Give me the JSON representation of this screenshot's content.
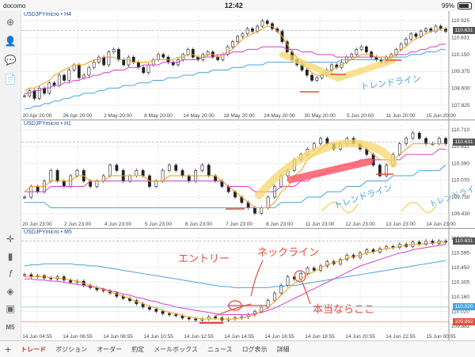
{
  "status": {
    "carrier": "docomo",
    "time": "12:42",
    "battery": "99%"
  },
  "charts": [
    {
      "label": "USDJPYmicro • H4",
      "prices": [
        "110.925",
        "110.631",
        "110.150",
        "109.375",
        "108.600",
        "107.825"
      ],
      "current": "110.631",
      "dates": [
        "20 Apr 20:00",
        "26 Apr 20:00",
        "2 May 20:00",
        "8 May 20:00",
        "14 May 20:00",
        "18 May 20:00",
        "24 May 20:00",
        "30 May 20:00",
        "5 Jun 20:00",
        "11 Jun 20:00",
        "15 Jun 20:00"
      ],
      "ylim": [
        107.55,
        111.2
      ],
      "candles": [
        108.1,
        108.3,
        108.0,
        108.4,
        108.2,
        108.6,
        108.5,
        108.9,
        108.7,
        109.1,
        109.3,
        108.8,
        108.9,
        109.2,
        109.4,
        109.6,
        109.3,
        109.8,
        109.9,
        109.5,
        109.3,
        109.6,
        109.4,
        109.2,
        109.0,
        109.3,
        109.5,
        109.7,
        109.6,
        109.4,
        109.3,
        109.5,
        109.7,
        109.9,
        109.6,
        109.5,
        109.7,
        109.8,
        109.6,
        109.5,
        109.7,
        110.0,
        110.2,
        110.4,
        110.5,
        110.7,
        110.6,
        110.8,
        111.0,
        110.9,
        110.7,
        110.6,
        110.2,
        109.8,
        109.5,
        109.3,
        109.1,
        108.9,
        108.7,
        108.8,
        108.9,
        109.1,
        109.3,
        109.2,
        109.4,
        109.6,
        109.7,
        109.9,
        110.0,
        109.8,
        109.6,
        109.5,
        109.4,
        109.6,
        109.7,
        109.9,
        110.1,
        110.3,
        110.5,
        110.4,
        110.6,
        110.7,
        110.6,
        110.8,
        110.7,
        110.6
      ],
      "ma_fast": [
        108.3,
        108.4,
        108.4,
        108.5,
        108.6,
        108.7,
        108.9,
        109.0,
        109.1,
        109.2,
        109.3,
        109.3,
        109.3,
        109.4,
        109.5,
        109.5,
        109.6,
        109.6,
        109.6,
        109.5,
        109.5,
        109.5,
        109.4,
        109.4,
        109.4,
        109.4,
        109.5,
        109.5,
        109.5,
        109.5,
        109.5,
        109.6,
        109.6,
        109.7,
        109.7,
        109.6,
        109.6,
        109.7,
        109.7,
        109.6,
        109.7,
        109.8,
        109.9,
        110.1,
        110.3,
        110.4,
        110.5,
        110.6,
        110.7,
        110.8,
        110.8,
        110.6,
        110.4,
        110.1,
        109.8,
        109.6,
        109.4,
        109.2,
        109.0,
        108.9,
        108.9,
        109.0,
        109.1,
        109.2,
        109.3,
        109.4,
        109.5,
        109.6,
        109.7,
        109.7,
        109.7,
        109.6,
        109.6,
        109.6,
        109.6,
        109.7,
        109.9,
        110.0,
        110.2,
        110.3,
        110.4,
        110.5,
        110.6,
        110.6,
        110.7,
        110.7
      ],
      "ma_mid": [
        108.2,
        108.2,
        108.3,
        108.3,
        108.4,
        108.4,
        108.5,
        108.5,
        108.6,
        108.6,
        108.7,
        108.7,
        108.8,
        108.8,
        108.9,
        108.9,
        109.0,
        109.0,
        109.1,
        109.1,
        109.1,
        109.2,
        109.2,
        109.2,
        109.3,
        109.3,
        109.3,
        109.3,
        109.4,
        109.4,
        109.4,
        109.4,
        109.5,
        109.5,
        109.5,
        109.5,
        109.6,
        109.6,
        109.6,
        109.7,
        109.7,
        109.7,
        109.8,
        109.8,
        109.8,
        109.9,
        109.9,
        109.9,
        110.0,
        110.0,
        110.0,
        110.0,
        110.0,
        109.9,
        109.9,
        109.9,
        109.8,
        109.8,
        109.8,
        109.7,
        109.7,
        109.7,
        109.7,
        109.6,
        109.6,
        109.6,
        109.6,
        109.6,
        109.6,
        109.6,
        109.6,
        109.6,
        109.6,
        109.6,
        109.6,
        109.7,
        109.7,
        109.7,
        109.8,
        109.8,
        109.9,
        109.9,
        110.0,
        110.0,
        110.1,
        110.1
      ],
      "ma_slow": [
        107.6,
        107.6,
        107.7,
        107.7,
        107.8,
        107.8,
        107.9,
        107.9,
        108.0,
        108.0,
        108.1,
        108.1,
        108.2,
        108.2,
        108.2,
        108.3,
        108.3,
        108.4,
        108.4,
        108.4,
        108.5,
        108.5,
        108.5,
        108.6,
        108.6,
        108.6,
        108.7,
        108.7,
        108.7,
        108.8,
        108.8,
        108.8,
        108.9,
        108.9,
        108.9,
        109.0,
        109.0,
        109.0,
        109.1,
        109.1,
        109.1,
        109.1,
        109.2,
        109.2,
        109.2,
        109.3,
        109.3,
        109.3,
        109.3,
        109.4,
        109.4,
        109.4,
        109.4,
        109.4,
        109.4,
        109.4,
        109.4,
        109.4,
        109.4,
        109.4,
        109.4,
        109.4,
        109.4,
        109.4,
        109.5,
        109.5,
        109.5,
        109.5,
        109.5,
        109.5,
        109.5,
        109.5,
        109.5,
        109.5,
        109.6,
        109.6,
        109.6,
        109.6,
        109.7,
        109.7,
        109.7,
        109.8,
        109.8,
        109.8,
        109.9,
        109.9
      ]
    },
    {
      "label": "USDJPYmicro • H1",
      "prices": [
        "110.710",
        "110.631",
        "110.390",
        "110.070",
        "109.750",
        "109.430"
      ],
      "current": "110.631",
      "dates": [
        "20 Jun 23:00",
        "2 Jun 23:00",
        "4 Jun 23:00",
        "5 Jun 23:00",
        "6 Jun 23:00",
        "7 Jun 23:00",
        "8 Jun 23:00",
        "11 Jun 23:00",
        "12 Jun 23:00",
        "13 Jun 23:00",
        "14 Jun 23:00"
      ],
      "ylim": [
        109.2,
        110.95
      ],
      "candles": [
        109.6,
        109.8,
        109.7,
        109.9,
        110.1,
        109.9,
        109.8,
        110.0,
        110.1,
        109.9,
        109.8,
        109.9,
        110.0,
        110.2,
        110.1,
        109.9,
        110.0,
        110.1,
        110.0,
        109.8,
        109.9,
        110.1,
        110.2,
        110.1,
        110.0,
        109.9,
        110.1,
        110.2,
        110.0,
        109.9,
        109.8,
        109.7,
        109.6,
        109.5,
        109.4,
        109.3,
        109.4,
        109.6,
        109.8,
        110.0,
        110.1,
        110.3,
        110.4,
        110.5,
        110.6,
        110.7,
        110.6,
        110.5,
        110.6,
        110.7,
        110.6,
        110.5,
        110.4,
        110.2,
        110.0,
        110.2,
        110.4,
        110.6,
        110.7,
        110.8,
        110.7,
        110.6,
        110.6,
        110.7,
        110.6
      ],
      "ma_fast": [
        109.7,
        109.8,
        109.8,
        109.8,
        109.9,
        109.9,
        109.9,
        109.9,
        110.0,
        110.0,
        109.9,
        109.9,
        109.9,
        110.0,
        110.0,
        110.0,
        110.0,
        110.0,
        110.0,
        109.9,
        109.9,
        109.9,
        110.0,
        110.0,
        110.0,
        110.0,
        110.0,
        110.0,
        110.0,
        110.0,
        109.9,
        109.8,
        109.7,
        109.6,
        109.5,
        109.4,
        109.4,
        109.4,
        109.5,
        109.7,
        109.8,
        110.0,
        110.1,
        110.3,
        110.4,
        110.5,
        110.6,
        110.6,
        110.6,
        110.6,
        110.6,
        110.6,
        110.5,
        110.4,
        110.3,
        110.3,
        110.3,
        110.4,
        110.5,
        110.6,
        110.6,
        110.6,
        110.6,
        110.6,
        110.6
      ],
      "ma_mid": [
        109.7,
        109.7,
        109.7,
        109.7,
        109.8,
        109.8,
        109.8,
        109.8,
        109.8,
        109.8,
        109.9,
        109.9,
        109.9,
        109.9,
        109.9,
        109.9,
        109.9,
        109.9,
        109.9,
        109.9,
        109.9,
        109.9,
        109.9,
        109.9,
        109.9,
        109.9,
        109.9,
        109.9,
        109.9,
        109.9,
        109.9,
        109.8,
        109.8,
        109.8,
        109.8,
        109.7,
        109.7,
        109.7,
        109.7,
        109.8,
        109.8,
        109.8,
        109.9,
        109.9,
        110.0,
        110.0,
        110.1,
        110.1,
        110.2,
        110.2,
        110.2,
        110.3,
        110.3,
        110.3,
        110.3,
        110.3,
        110.3,
        110.3,
        110.4,
        110.4,
        110.4,
        110.4,
        110.4,
        110.5,
        110.5
      ],
      "ma_slow": [
        109.5,
        109.5,
        109.5,
        109.5,
        109.4,
        109.4,
        109.4,
        109.4,
        109.4,
        109.4,
        109.4,
        109.4,
        109.4,
        109.4,
        109.4,
        109.4,
        109.4,
        109.4,
        109.4,
        109.4,
        109.4,
        109.4,
        109.4,
        109.4,
        109.4,
        109.4,
        109.4,
        109.4,
        109.4,
        109.4,
        109.4,
        109.4,
        109.4,
        109.4,
        109.4,
        109.4,
        109.4,
        109.4,
        109.4,
        109.5,
        109.5,
        109.5,
        109.5,
        109.6,
        109.6,
        109.6,
        109.7,
        109.7,
        109.7,
        109.8,
        109.8,
        109.8,
        109.9,
        109.9,
        109.9,
        109.9,
        110.0,
        110.0,
        110.0,
        110.0,
        110.1,
        110.1,
        110.1,
        110.1,
        110.2
      ]
    },
    {
      "label": "USDJPYmicro • M5",
      "prices": [
        "110.631",
        "110.595",
        "110.450",
        "110.305",
        "110.160",
        "110.020",
        "109.882"
      ],
      "current": "110.631",
      "dates": [
        "14 Jun 04:55",
        "14 Jun 06:55",
        "14 Jun 08:55",
        "14 Jun 10:55",
        "14 Jun 12:55",
        "14 Jun 14:55",
        "14 Jun 16:55",
        "14 Jun 18:55",
        "14 Jun 20:55",
        "14 Jun 22:55",
        "15 Jun 00:55"
      ],
      "ylim": [
        109.8,
        110.7
      ],
      "candles": [
        110.32,
        110.3,
        110.31,
        110.29,
        110.28,
        110.3,
        110.27,
        110.25,
        110.26,
        110.22,
        110.2,
        110.18,
        110.17,
        110.15,
        110.12,
        110.1,
        110.08,
        110.05,
        110.02,
        110.0,
        109.98,
        109.96,
        109.95,
        109.94,
        109.92,
        109.91,
        109.9,
        109.91,
        109.93,
        109.92,
        109.9,
        109.91,
        109.92,
        109.93,
        109.95,
        109.98,
        110.02,
        110.08,
        110.15,
        110.22,
        110.3,
        110.28,
        110.33,
        110.38,
        110.36,
        110.4,
        110.44,
        110.42,
        110.46,
        110.5,
        110.48,
        110.52,
        110.55,
        110.53,
        110.56,
        110.58,
        110.57,
        110.6,
        110.58,
        110.62,
        110.6,
        110.63,
        110.61,
        110.63,
        110.62
      ],
      "ma_fast": [
        110.3,
        110.3,
        110.3,
        110.3,
        110.29,
        110.29,
        110.28,
        110.27,
        110.26,
        110.24,
        110.22,
        110.2,
        110.18,
        110.16,
        110.14,
        110.12,
        110.1,
        110.07,
        110.05,
        110.03,
        110.01,
        109.99,
        109.97,
        109.96,
        109.94,
        109.93,
        109.92,
        109.91,
        109.91,
        109.91,
        109.91,
        109.91,
        109.91,
        109.92,
        109.93,
        109.95,
        109.98,
        110.02,
        110.07,
        110.13,
        110.19,
        110.24,
        110.28,
        110.32,
        110.35,
        110.38,
        110.41,
        110.43,
        110.45,
        110.47,
        110.49,
        110.5,
        110.52,
        110.53,
        110.55,
        110.56,
        110.57,
        110.58,
        110.59,
        110.6,
        110.6,
        110.61,
        110.61,
        110.62,
        110.62
      ],
      "ma_mid": [
        110.28,
        110.28,
        110.27,
        110.27,
        110.26,
        110.26,
        110.25,
        110.24,
        110.23,
        110.22,
        110.21,
        110.2,
        110.19,
        110.17,
        110.16,
        110.14,
        110.13,
        110.11,
        110.1,
        110.08,
        110.07,
        110.05,
        110.04,
        110.02,
        110.01,
        110.0,
        109.99,
        109.98,
        109.97,
        109.96,
        109.95,
        109.95,
        109.95,
        109.95,
        109.95,
        109.96,
        109.97,
        109.99,
        110.01,
        110.04,
        110.07,
        110.1,
        110.13,
        110.16,
        110.19,
        110.22,
        110.25,
        110.28,
        110.31,
        110.34,
        110.37,
        110.4,
        110.42,
        110.44,
        110.46,
        110.48,
        110.5,
        110.52,
        110.53,
        110.55,
        110.56,
        110.57,
        110.58,
        110.59,
        110.6
      ],
      "ma_slow": [
        110.4,
        110.41,
        110.41,
        110.42,
        110.42,
        110.42,
        110.42,
        110.42,
        110.41,
        110.41,
        110.4,
        110.4,
        110.39,
        110.38,
        110.37,
        110.36,
        110.35,
        110.34,
        110.33,
        110.32,
        110.31,
        110.3,
        110.29,
        110.28,
        110.27,
        110.26,
        110.25,
        110.24,
        110.23,
        110.22,
        110.21,
        110.21,
        110.2,
        110.2,
        110.2,
        110.2,
        110.2,
        110.2,
        110.21,
        110.21,
        110.22,
        110.22,
        110.23,
        110.24,
        110.25,
        110.26,
        110.27,
        110.28,
        110.29,
        110.3,
        110.31,
        110.32,
        110.33,
        110.34,
        110.35,
        110.36,
        110.37,
        110.38,
        110.39,
        110.4,
        110.41,
        110.42,
        110.43,
        110.44,
        110.45
      ]
    }
  ],
  "extra_tags": {
    "blue": "110.020",
    "red": "109.882"
  },
  "annotations": {
    "trendline_h4": "トレンドライン",
    "trendline_h1a": "トレンドライン",
    "trendline_h1b": "トレンドライン",
    "entry": "エントリー",
    "neckline": "ネックライン",
    "stoploss": "本当ならここ"
  },
  "tabs": [
    "トレード",
    "ポジション",
    "オーダー",
    "約定",
    "メールボックス",
    "ニュース",
    "ログ表示",
    "詳細"
  ],
  "colors": {
    "fast": "#f39c12",
    "mid": "#d63fc9",
    "slow": "#4aa3df",
    "highlight": "#f5d76e",
    "marker_red": "#e74c3c",
    "label_blue": "#1a4fa0"
  },
  "icons": [
    "crosshair-icon",
    "candle-chart-icon",
    "indicator-f-icon",
    "objects-icon",
    "templates-icon",
    "period-icon"
  ]
}
